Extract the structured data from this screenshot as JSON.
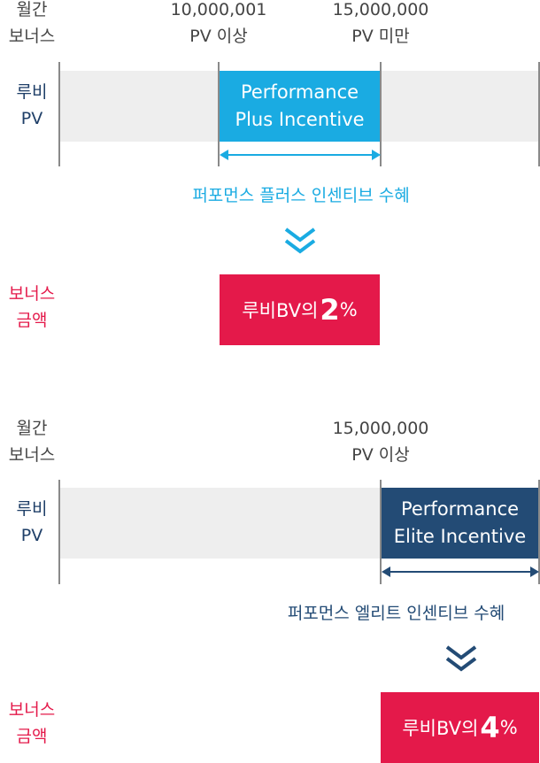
{
  "colors": {
    "plus": "#1aabe2",
    "elite": "#234b75",
    "red": "#e4194a",
    "track": "#eeeeee"
  },
  "section1": {
    "label_monthly": [
      "월간",
      "보너스"
    ],
    "label_pv": [
      "루비",
      "PV"
    ],
    "threshold_low": [
      "10,000,001",
      "PV 이상"
    ],
    "threshold_high": [
      "15,000,000",
      "PV 미만"
    ],
    "segment_text": [
      "Performance",
      "Plus Incentive"
    ],
    "benefit_text": "퍼포먼스 플러스 인센티브 수혜",
    "bonus_label": [
      "보너스",
      "금액"
    ],
    "bonus_prefix": "루비BV의",
    "bonus_value": "2",
    "bonus_unit": "%"
  },
  "section2": {
    "label_monthly": [
      "월간",
      "보너스"
    ],
    "label_pv": [
      "루비",
      "PV"
    ],
    "threshold": [
      "15,000,000",
      "PV 이상"
    ],
    "segment_text": [
      "Performance",
      "Elite Incentive"
    ],
    "benefit_text": "퍼포먼스 엘리트 인센티브 수혜",
    "bonus_label": [
      "보너스",
      "금액"
    ],
    "bonus_prefix": "루비BV의",
    "bonus_value": "4",
    "bonus_unit": "%"
  }
}
